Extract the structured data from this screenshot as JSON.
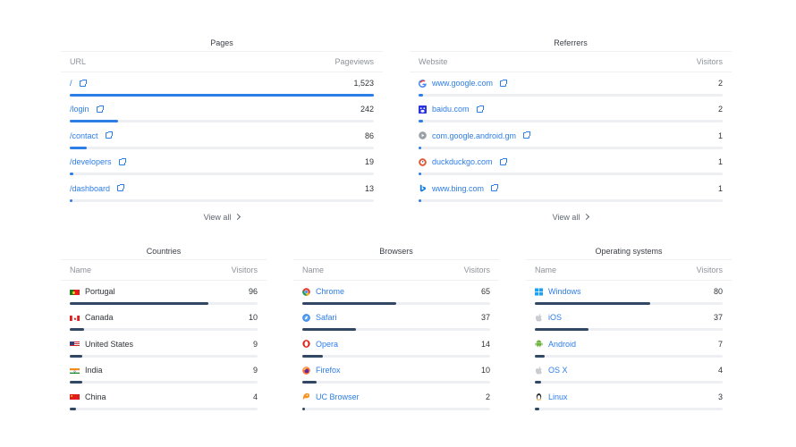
{
  "pages": {
    "title": "Pages",
    "col_left": "URL",
    "col_right": "Pageviews",
    "rows": [
      {
        "label": "/",
        "value": "1,523",
        "fraction": 1.0
      },
      {
        "label": "/login",
        "value": "242",
        "fraction": 0.159
      },
      {
        "label": "/contact",
        "value": "86",
        "fraction": 0.056
      },
      {
        "label": "/developers",
        "value": "19",
        "fraction": 0.012
      },
      {
        "label": "/dashboard",
        "value": "13",
        "fraction": 0.009
      }
    ],
    "view_all": "View all"
  },
  "referrers": {
    "title": "Referrers",
    "col_left": "Website",
    "col_right": "Visitors",
    "rows": [
      {
        "label": "www.google.com",
        "value": "2",
        "fraction": 0.015,
        "icon": "google-icon"
      },
      {
        "label": "baidu.com",
        "value": "2",
        "fraction": 0.015,
        "icon": "baidu-icon"
      },
      {
        "label": "com.google.android.gm",
        "value": "1",
        "fraction": 0.008,
        "icon": "android-app-icon"
      },
      {
        "label": "duckduckgo.com",
        "value": "1",
        "fraction": 0.008,
        "icon": "duckduckgo-icon"
      },
      {
        "label": "www.bing.com",
        "value": "1",
        "fraction": 0.008,
        "icon": "bing-icon"
      }
    ],
    "view_all": "View all"
  },
  "countries": {
    "title": "Countries",
    "col_left": "Name",
    "col_right": "Visitors",
    "rows": [
      {
        "label": "Portugal",
        "value": "96",
        "fraction": 0.74,
        "icon": "portugal-flag-icon"
      },
      {
        "label": "Canada",
        "value": "10",
        "fraction": 0.077,
        "icon": "canada-flag-icon"
      },
      {
        "label": "United States",
        "value": "9",
        "fraction": 0.069,
        "icon": "us-flag-icon"
      },
      {
        "label": "India",
        "value": "9",
        "fraction": 0.069,
        "icon": "india-flag-icon"
      },
      {
        "label": "China",
        "value": "4",
        "fraction": 0.031,
        "icon": "china-flag-icon"
      }
    ]
  },
  "browsers": {
    "title": "Browsers",
    "col_left": "Name",
    "col_right": "Visitors",
    "rows": [
      {
        "label": "Chrome",
        "value": "65",
        "fraction": 0.5,
        "icon": "chrome-icon"
      },
      {
        "label": "Safari",
        "value": "37",
        "fraction": 0.285,
        "icon": "safari-icon"
      },
      {
        "label": "Opera",
        "value": "14",
        "fraction": 0.108,
        "icon": "opera-icon"
      },
      {
        "label": "Firefox",
        "value": "10",
        "fraction": 0.077,
        "icon": "firefox-icon"
      },
      {
        "label": "UC Browser",
        "value": "2",
        "fraction": 0.015,
        "icon": "uc-browser-icon"
      }
    ]
  },
  "os": {
    "title": "Operating systems",
    "col_left": "Name",
    "col_right": "Visitors",
    "rows": [
      {
        "label": "Windows",
        "value": "80",
        "fraction": 0.615,
        "icon": "windows-icon"
      },
      {
        "label": "iOS",
        "value": "37",
        "fraction": 0.285,
        "icon": "apple-icon"
      },
      {
        "label": "Android",
        "value": "7",
        "fraction": 0.054,
        "icon": "android-icon"
      },
      {
        "label": "OS X",
        "value": "4",
        "fraction": 0.031,
        "icon": "apple-icon"
      },
      {
        "label": "Linux",
        "value": "3",
        "fraction": 0.023,
        "icon": "linux-icon"
      }
    ]
  },
  "colors": {
    "link": "#2d7de6",
    "bar_blue": "#2d7de6",
    "bar_navy": "#304864"
  }
}
